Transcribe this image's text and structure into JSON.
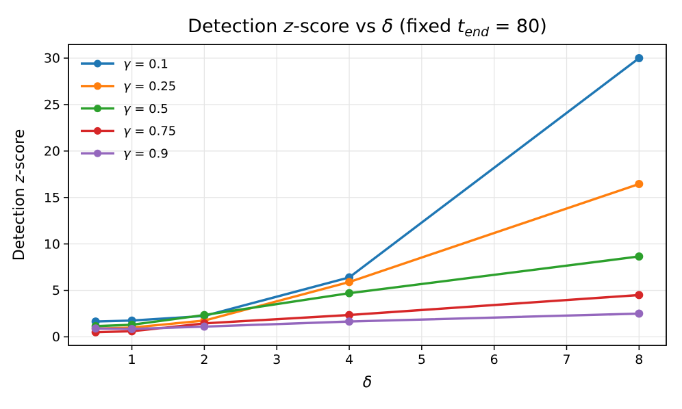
{
  "chart_data": {
    "type": "line",
    "title": "Detection z-score vs δ (fixed t_end = 80)",
    "title_segments": [
      {
        "text": "Detection ",
        "italic": false
      },
      {
        "text": "z",
        "italic": true
      },
      {
        "text": "-score vs ",
        "italic": false
      },
      {
        "text": "δ",
        "italic": true
      },
      {
        "text": " (fixed ",
        "italic": false
      },
      {
        "text": "t",
        "italic": true
      },
      {
        "text": "end",
        "italic": true,
        "subscript": true
      },
      {
        "text": " = 80)",
        "italic": false
      }
    ],
    "xlabel": "δ",
    "xlabel_segments": [
      {
        "text": "δ",
        "italic": true
      }
    ],
    "ylabel": "Detection z-score",
    "ylabel_segments": [
      {
        "text": "Detection ",
        "italic": false
      },
      {
        "text": "z",
        "italic": true
      },
      {
        "text": "-score",
        "italic": false
      }
    ],
    "x": [
      0.5,
      1,
      2,
      4,
      8
    ],
    "xlim": [
      0.125,
      8.375
    ],
    "ylim": [
      -0.92,
      31.47
    ],
    "xticks": [
      1,
      2,
      3,
      4,
      5,
      6,
      7,
      8
    ],
    "yticks": [
      0,
      5,
      10,
      15,
      20,
      25,
      30
    ],
    "grid": true,
    "legend": {
      "position": "upper-left",
      "frame": false,
      "entries": [
        "γ = 0.1",
        "γ = 0.25",
        "γ = 0.5",
        "γ = 0.75",
        "γ = 0.9"
      ]
    },
    "series": [
      {
        "name": "gamma-0.1",
        "label": "γ = 0.1",
        "color": "#1f77b4",
        "values": [
          1.65,
          1.75,
          2.25,
          6.4,
          30.0
        ]
      },
      {
        "name": "gamma-0.25",
        "label": "γ = 0.25",
        "color": "#ff7f0e",
        "values": [
          0.9,
          1.0,
          1.75,
          5.9,
          16.45
        ]
      },
      {
        "name": "gamma-0.5",
        "label": "γ = 0.5",
        "color": "#2ca02c",
        "values": [
          1.15,
          1.3,
          2.35,
          4.7,
          8.65
        ]
      },
      {
        "name": "gamma-0.75",
        "label": "γ = 0.75",
        "color": "#d62728",
        "values": [
          0.5,
          0.6,
          1.45,
          2.35,
          4.5
        ]
      },
      {
        "name": "gamma-0.9",
        "label": "γ = 0.9",
        "color": "#9467bd",
        "values": [
          0.9,
          0.85,
          1.1,
          1.65,
          2.5
        ]
      }
    ],
    "styles": {
      "background": "#ffffff",
      "grid_color": "#e5e5e5",
      "spine_color": "#000000",
      "text_color": "#000000"
    }
  }
}
